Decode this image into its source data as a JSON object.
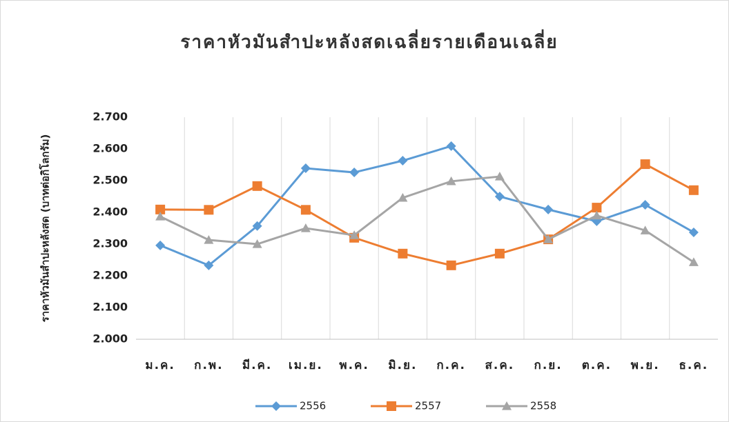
{
  "chart_data": {
    "type": "line",
    "title": "ราคาหัวมันสำปะหลังสดเฉลี่ยรายเดือนเฉลี่ย",
    "y_label": "ราคาหัวมันสำปะหลังสด (บาทต่อกิโลกรัม)",
    "categories": [
      "ม.ค.",
      "ก.พ.",
      "มี.ค.",
      "เม.ย.",
      "พ.ค.",
      "มิ.ย.",
      "ก.ค.",
      "ส.ค.",
      "ก.ย.",
      "ต.ค.",
      "พ.ย.",
      "ธ.ค."
    ],
    "series": [
      {
        "name": "2556",
        "color": "#5b9bd5",
        "marker": "diamond",
        "values": [
          2.296,
          2.233,
          2.357,
          2.539,
          2.526,
          2.563,
          2.609,
          2.45,
          2.409,
          2.372,
          2.424,
          2.337
        ]
      },
      {
        "name": "2557",
        "color": "#ed7d31",
        "marker": "square",
        "values": [
          2.409,
          2.408,
          2.483,
          2.408,
          2.32,
          2.27,
          2.233,
          2.27,
          2.315,
          2.415,
          2.552,
          2.47
        ]
      },
      {
        "name": "2558",
        "color": "#a5a5a5",
        "marker": "triangle",
        "values": [
          2.387,
          2.313,
          2.3,
          2.35,
          2.328,
          2.446,
          2.498,
          2.513,
          2.315,
          2.39,
          2.343,
          2.243
        ]
      }
    ],
    "ylim": [
      2.0,
      2.7
    ],
    "yticks": [
      {
        "value": 2.0,
        "label": "2.000"
      },
      {
        "value": 2.1,
        "label": "2.100"
      },
      {
        "value": 2.2,
        "label": "2.200"
      },
      {
        "value": 2.3,
        "label": "2.300"
      },
      {
        "value": 2.4,
        "label": "2.400"
      },
      {
        "value": 2.5,
        "label": "2.500"
      },
      {
        "value": 2.6,
        "label": "2.600"
      },
      {
        "value": 2.7,
        "label": "2.700"
      }
    ],
    "grid": true,
    "legend": "bottom"
  }
}
